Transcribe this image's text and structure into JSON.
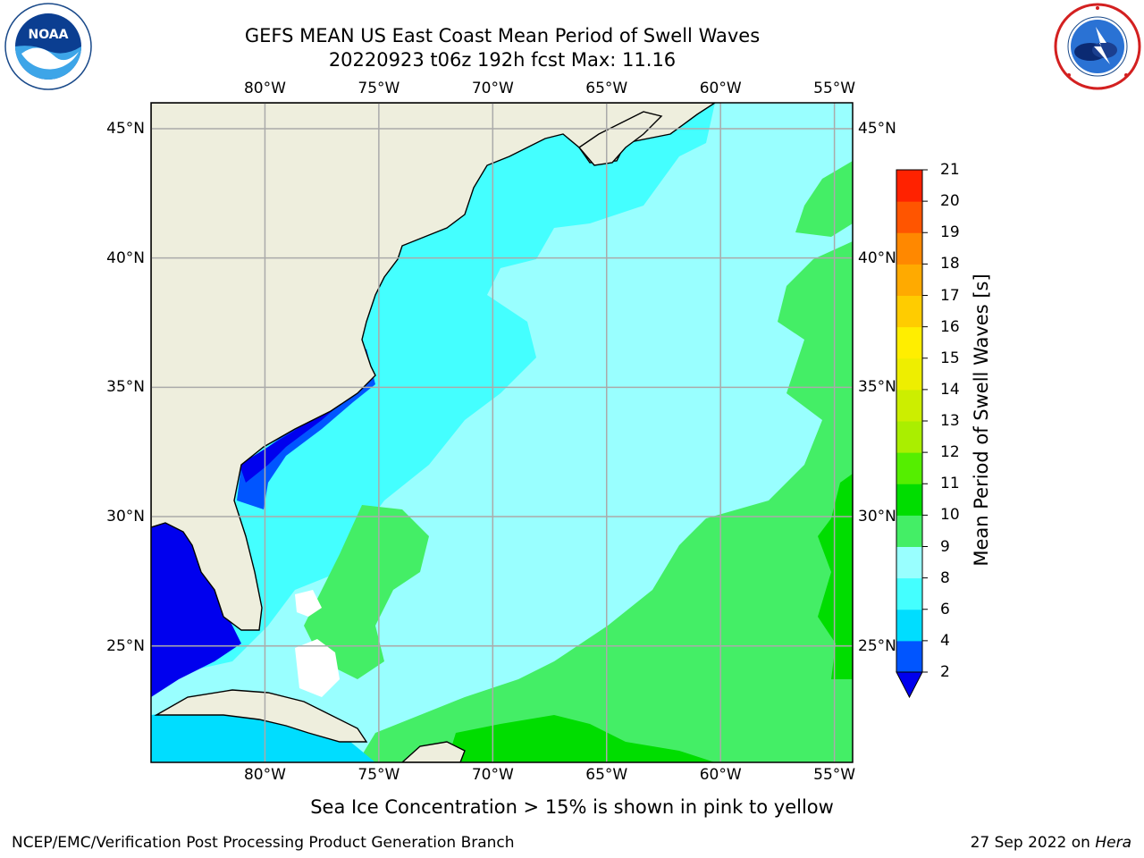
{
  "title_line1": "GEFS MEAN US East Coast Mean Period of Swell Waves",
  "title_line2": "20220923 t06z 192h fcst   Max: 11.16",
  "lon_ticks": [
    "80°W",
    "75°W",
    "70°W",
    "65°W",
    "60°W",
    "55°W"
  ],
  "lon_values": [
    -80,
    -75,
    -70,
    -65,
    -60,
    -55
  ],
  "lat_ticks": [
    "45°N",
    "40°N",
    "35°N",
    "30°N",
    "25°N"
  ],
  "lat_values": [
    45,
    40,
    35,
    30,
    25
  ],
  "map_extent": {
    "lon": [
      -85,
      -54.2
    ],
    "lat": [
      20.5,
      46
    ]
  },
  "colorbar": {
    "label": "Mean Period of Swell Waves [s]",
    "ticks": [
      "2",
      "4",
      "6",
      "8",
      "9",
      "10",
      "11",
      "12",
      "13",
      "14",
      "15",
      "16",
      "17",
      "18",
      "19",
      "20",
      "21"
    ],
    "colors": [
      "#0055ff",
      "#00ddff",
      "#44ffff",
      "#99ffff",
      "#44ee66",
      "#00dd00",
      "#55ee00",
      "#aaee00",
      "#ccee00",
      "#eeee00",
      "#ffee00",
      "#ffcc00",
      "#ffaa00",
      "#ff8800",
      "#ff5500",
      "#ff2200"
    ],
    "extend_color": "#0000ee"
  },
  "colors": {
    "land": "#eeeedd",
    "grid": "#aaaaaa"
  },
  "note": "Sea Ice Concentration > 15% is shown in pink to yellow",
  "credit": "NCEP/EMC/Verification Post Processing Product Generation Branch",
  "date": "27 Sep 2022 on ",
  "date_machine": "Hera",
  "logos": {
    "noaa": {
      "text": "NOAA",
      "icon": "noaa-logo-icon"
    },
    "nws": {
      "icon": "nws-logo-icon"
    }
  }
}
